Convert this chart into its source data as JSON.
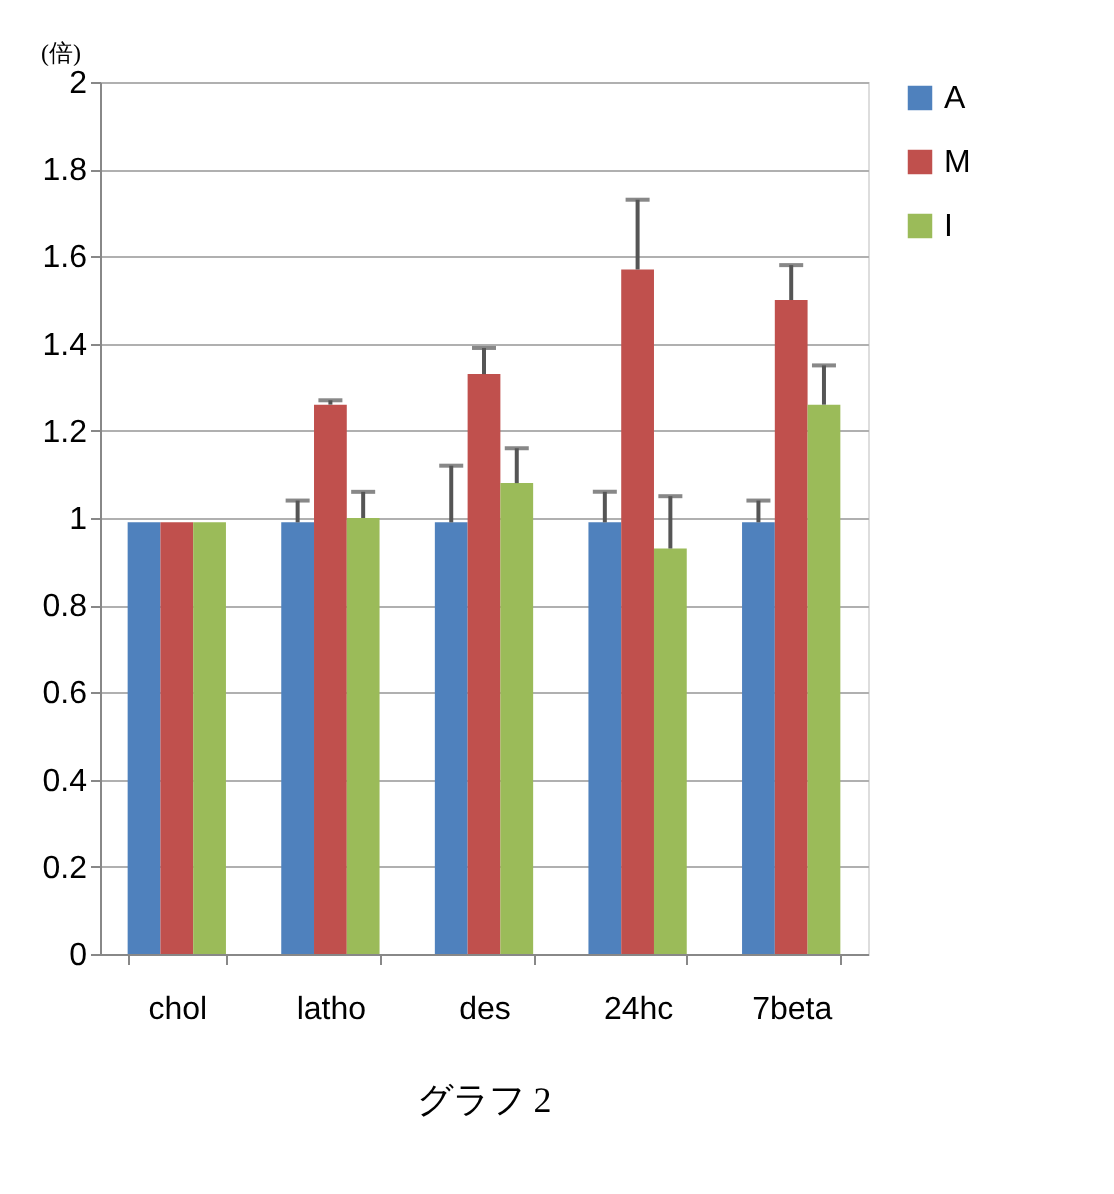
{
  "chart_data": {
    "type": "bar",
    "title": "グラフ 2",
    "ylabel": "(倍)",
    "categories": [
      "chol",
      "latho",
      "des",
      "24hc",
      "7beta"
    ],
    "series": [
      {
        "name": "A",
        "color": "#4f81bd",
        "values": [
          0.99,
          0.99,
          0.99,
          0.99,
          0.99
        ],
        "errors": [
          null,
          [
            0.99,
            1.04
          ],
          [
            0.99,
            1.12
          ],
          [
            0.99,
            1.06
          ],
          [
            0.99,
            1.04
          ]
        ]
      },
      {
        "name": "M",
        "color": "#c0504d",
        "values": [
          0.99,
          1.26,
          1.33,
          1.57,
          1.5
        ],
        "errors": [
          null,
          [
            1.26,
            1.27
          ],
          [
            1.33,
            1.39
          ],
          [
            1.57,
            1.73
          ],
          [
            1.5,
            1.58
          ]
        ]
      },
      {
        "name": "I",
        "color": "#9bbb59",
        "values": [
          0.99,
          1.0,
          1.08,
          0.93,
          1.26
        ],
        "errors": [
          null,
          [
            1.0,
            1.06
          ],
          [
            1.08,
            1.16
          ],
          [
            0.93,
            1.05
          ],
          [
            1.26,
            1.35
          ]
        ]
      }
    ],
    "ylim": [
      0,
      2
    ],
    "yticks": [
      0,
      0.2,
      0.4,
      0.6,
      0.8,
      1,
      1.2,
      1.4,
      1.6,
      1.8,
      2
    ],
    "grid": "y",
    "legend": "right"
  }
}
